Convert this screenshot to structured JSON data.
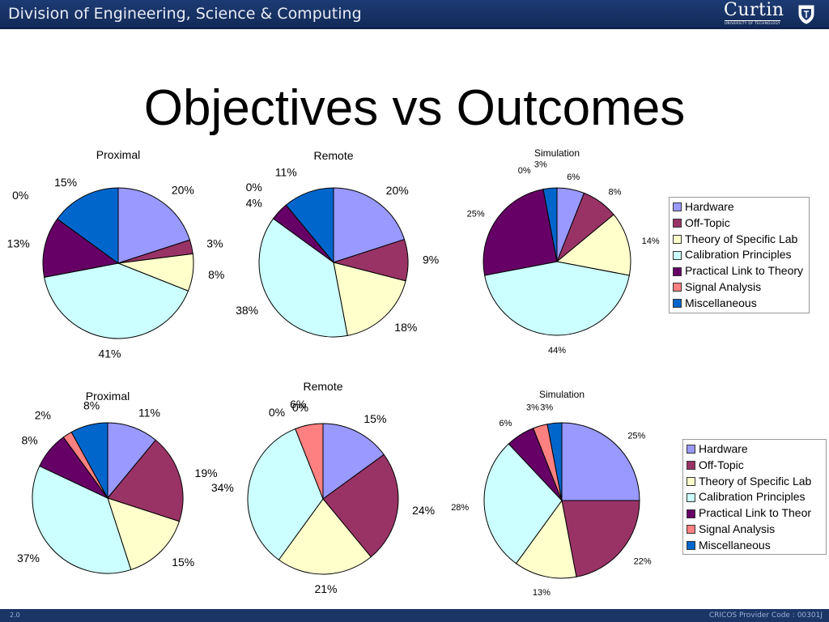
{
  "header": {
    "title": "Division of Engineering, Science & Computing",
    "logo_text": "Curtin",
    "logo_subtext": "UNIVERSITY OF TECHNOLOGY",
    "logo_icon": "shield-icon"
  },
  "slide": {
    "title": "Objectives vs Outcomes"
  },
  "footer": {
    "slide_number": "2.0",
    "cricos": "CRICOS Provider Code : 00301J"
  },
  "legend_top": {
    "items": [
      "Hardware",
      "Off-Topic",
      "Theory of Specific Lab",
      "Calibration Principles",
      "Practical Link to Theory",
      "Signal Analysis",
      "Miscellaneous"
    ]
  },
  "legend_bottom": {
    "items": [
      "Hardware",
      "Off-Topic",
      "Theory of Specific Lab",
      "Calibration Principles",
      "Practical Link to Theor",
      "Signal Analysis",
      "Miscellaneous"
    ]
  },
  "colors": {
    "Hardware": "#9999ff",
    "Off-Topic": "#993366",
    "Theory of Specific Lab": "#ffffcc",
    "Calibration Principles": "#ccffff",
    "Practical Link to Theory": "#660066",
    "Signal Analysis": "#ff8080",
    "Miscellaneous": "#0066cc"
  },
  "chart_data": [
    {
      "type": "pie",
      "title": "Proximal",
      "row": "top",
      "categories": [
        "Hardware",
        "Off-Topic",
        "Theory of Specific Lab",
        "Calibration Principles",
        "Practical Link to Theory",
        "Signal Analysis",
        "Miscellaneous"
      ],
      "values": [
        20,
        3,
        8,
        41,
        13,
        0,
        15
      ],
      "labels": [
        "20%",
        "3%",
        "8%",
        "41%",
        "13%",
        "0%",
        "15%"
      ]
    },
    {
      "type": "pie",
      "title": "Remote",
      "row": "top",
      "categories": [
        "Hardware",
        "Off-Topic",
        "Theory of Specific Lab",
        "Calibration Principles",
        "Practical Link to Theory",
        "Signal Analysis",
        "Miscellaneous"
      ],
      "values": [
        20,
        9,
        18,
        38,
        4,
        0,
        11
      ],
      "labels": [
        "20%",
        "9%",
        "18%",
        "38%",
        "4%",
        "0%",
        "11%"
      ]
    },
    {
      "type": "pie",
      "title": "Simulation",
      "row": "top",
      "categories": [
        "Hardware",
        "Off-Topic",
        "Theory of Specific Lab",
        "Calibration Principles",
        "Practical Link to Theory",
        "Signal Analysis",
        "Miscellaneous"
      ],
      "values": [
        6,
        8,
        14,
        44,
        25,
        0,
        3
      ],
      "labels": [
        "6%",
        "8%",
        "14%",
        "44%",
        "25%",
        "0%",
        "3%"
      ]
    },
    {
      "type": "pie",
      "title": "Proximal",
      "row": "bottom",
      "categories": [
        "Hardware",
        "Off-Topic",
        "Theory of Specific Lab",
        "Calibration Principles",
        "Practical Link to Theory",
        "Signal Analysis",
        "Miscellaneous"
      ],
      "values": [
        11,
        19,
        15,
        37,
        8,
        2,
        8
      ],
      "labels": [
        "11%",
        "19%",
        "15%",
        "37%",
        "8%",
        "2%",
        "8%"
      ]
    },
    {
      "type": "pie",
      "title": "Remote",
      "row": "bottom",
      "categories": [
        "Hardware",
        "Off-Topic",
        "Theory of Specific Lab",
        "Calibration Principles",
        "Practical Link to Theory",
        "Signal Analysis",
        "Miscellaneous"
      ],
      "values": [
        15,
        24,
        21,
        34,
        0,
        6,
        0
      ],
      "labels": [
        "15%",
        "24%",
        "21%",
        "34%",
        "0%",
        "6%",
        "0%"
      ]
    },
    {
      "type": "pie",
      "title": "Simulation",
      "row": "bottom",
      "categories": [
        "Hardware",
        "Off-Topic",
        "Theory of Specific Lab",
        "Calibration Principles",
        "Practical Link to Theory",
        "Signal Analysis",
        "Miscellaneous"
      ],
      "values": [
        25,
        22,
        13,
        28,
        6,
        3,
        3
      ],
      "labels": [
        "25%",
        "22%",
        "13%",
        "28%",
        "6%",
        "3%",
        "3%"
      ]
    }
  ]
}
